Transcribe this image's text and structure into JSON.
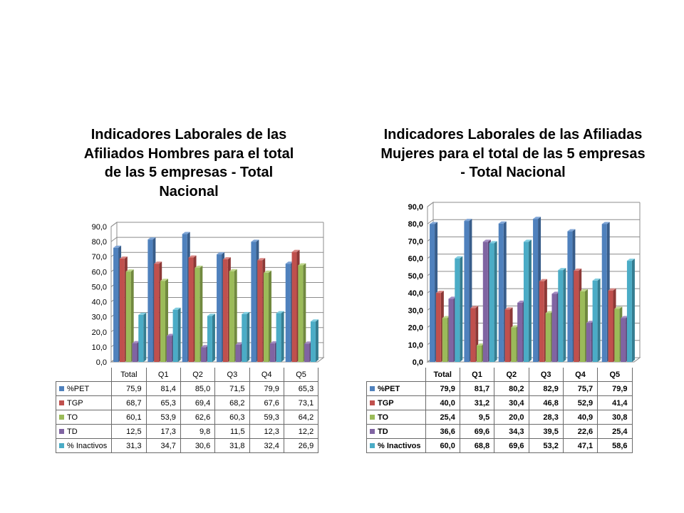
{
  "colors": {
    "front": [
      "#4f81bd",
      "#c0504d",
      "#9bbb59",
      "#8064a2",
      "#4bacc6"
    ],
    "side": [
      "#385d8a",
      "#8c3836",
      "#71893f",
      "#5c4776",
      "#357d91"
    ],
    "top": [
      "#7fa5d6",
      "#d98683",
      "#bdd68a",
      "#a48cc2",
      "#80cde0"
    ]
  },
  "chart_data": [
    {
      "type": "bar",
      "title": "Indicadores Laborales de las Afiliados Hombres para el total de las 5 empresas - Total Nacional",
      "categories": [
        "Total",
        "Q1",
        "Q2",
        "Q3",
        "Q4",
        "Q5"
      ],
      "ylim": [
        0,
        90
      ],
      "y_ticks": [
        "0,0",
        "10,0",
        "20,0",
        "30,0",
        "40,0",
        "50,0",
        "60,0",
        "70,0",
        "80,0",
        "90,0"
      ],
      "grid": true,
      "legend": "data table",
      "series": [
        {
          "name": "%PET",
          "values": [
            75.9,
            81.4,
            85.0,
            71.5,
            79.9,
            65.3
          ],
          "labels": [
            "75,9",
            "81,4",
            "85,0",
            "71,5",
            "79,9",
            "65,3"
          ]
        },
        {
          "name": "TGP",
          "values": [
            68.7,
            65.3,
            69.4,
            68.2,
            67.6,
            73.1
          ],
          "labels": [
            "68,7",
            "65,3",
            "69,4",
            "68,2",
            "67,6",
            "73,1"
          ]
        },
        {
          "name": "TO",
          "values": [
            60.1,
            53.9,
            62.6,
            60.3,
            59.3,
            64.2
          ],
          "labels": [
            "60,1",
            "53,9",
            "62,6",
            "60,3",
            "59,3",
            "64,2"
          ]
        },
        {
          "name": "TD",
          "values": [
            12.5,
            17.3,
            9.8,
            11.5,
            12.3,
            12.2
          ],
          "labels": [
            "12,5",
            "17,3",
            "9,8",
            "11,5",
            "12,3",
            "12,2"
          ]
        },
        {
          "name": "% Inactivos",
          "values": [
            31.3,
            34.7,
            30.6,
            31.8,
            32.4,
            26.9
          ],
          "labels": [
            "31,3",
            "34,7",
            "30,6",
            "31,8",
            "32,4",
            "26,9"
          ]
        }
      ]
    },
    {
      "type": "bar",
      "title": "Indicadores Laborales de las Afiliadas Mujeres para el total de las 5 empresas - Total Nacional",
      "categories": [
        "Total",
        "Q1",
        "Q2",
        "Q3",
        "Q4",
        "Q5"
      ],
      "ylim": [
        0,
        90
      ],
      "y_ticks": [
        "0,0",
        "10,0",
        "20,0",
        "30,0",
        "40,0",
        "50,0",
        "60,0",
        "70,0",
        "80,0",
        "90,0"
      ],
      "grid": true,
      "legend": "data table",
      "series": [
        {
          "name": "%PET",
          "values": [
            79.9,
            81.7,
            80.2,
            82.9,
            75.7,
            79.9
          ],
          "labels": [
            "79,9",
            "81,7",
            "80,2",
            "82,9",
            "75,7",
            "79,9"
          ]
        },
        {
          "name": "TGP",
          "values": [
            40.0,
            31.2,
            30.4,
            46.8,
            52.9,
            41.4
          ],
          "labels": [
            "40,0",
            "31,2",
            "30,4",
            "46,8",
            "52,9",
            "41,4"
          ]
        },
        {
          "name": "TO",
          "values": [
            25.4,
            9.5,
            20.0,
            28.3,
            40.9,
            30.8
          ],
          "labels": [
            "25,4",
            "9,5",
            "20,0",
            "28,3",
            "40,9",
            "30,8"
          ]
        },
        {
          "name": "TD",
          "values": [
            36.6,
            69.6,
            34.3,
            39.5,
            22.6,
            25.4
          ],
          "labels": [
            "36,6",
            "69,6",
            "34,3",
            "39,5",
            "22,6",
            "25,4"
          ]
        },
        {
          "name": "% Inactivos",
          "values": [
            60.0,
            68.8,
            69.6,
            53.2,
            47.1,
            58.6
          ],
          "labels": [
            "60,0",
            "68,8",
            "69,6",
            "53,2",
            "47,1",
            "58,6"
          ]
        }
      ]
    }
  ]
}
